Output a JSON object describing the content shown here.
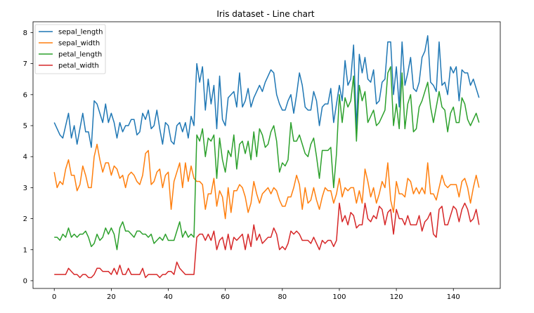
{
  "chart_data": {
    "type": "line",
    "title": "Iris dataset - Line chart",
    "xlabel": "",
    "ylabel": "",
    "xlim": [
      -7.45,
      156.45
    ],
    "ylim": [
      -0.25,
      8.35
    ],
    "x_ticks": [
      0,
      20,
      40,
      60,
      80,
      100,
      120,
      140
    ],
    "y_ticks": [
      0,
      1,
      2,
      3,
      4,
      5,
      6,
      7,
      8
    ],
    "grid": false,
    "legend_position": "top-left",
    "x": [
      0,
      1,
      2,
      3,
      4,
      5,
      6,
      7,
      8,
      9,
      10,
      11,
      12,
      13,
      14,
      15,
      16,
      17,
      18,
      19,
      20,
      21,
      22,
      23,
      24,
      25,
      26,
      27,
      28,
      29,
      30,
      31,
      32,
      33,
      34,
      35,
      36,
      37,
      38,
      39,
      40,
      41,
      42,
      43,
      44,
      45,
      46,
      47,
      48,
      49,
      50,
      51,
      52,
      53,
      54,
      55,
      56,
      57,
      58,
      59,
      60,
      61,
      62,
      63,
      64,
      65,
      66,
      67,
      68,
      69,
      70,
      71,
      72,
      73,
      74,
      75,
      76,
      77,
      78,
      79,
      80,
      81,
      82,
      83,
      84,
      85,
      86,
      87,
      88,
      89,
      90,
      91,
      92,
      93,
      94,
      95,
      96,
      97,
      98,
      99,
      100,
      101,
      102,
      103,
      104,
      105,
      106,
      107,
      108,
      109,
      110,
      111,
      112,
      113,
      114,
      115,
      116,
      117,
      118,
      119,
      120,
      121,
      122,
      123,
      124,
      125,
      126,
      127,
      128,
      129,
      130,
      131,
      132,
      133,
      134,
      135,
      136,
      137,
      138,
      139,
      140,
      141,
      142,
      143,
      144,
      145,
      146,
      147,
      148,
      149
    ],
    "series": [
      {
        "name": "sepal_length",
        "color": "#1f77b4",
        "values": [
          5.1,
          4.9,
          4.7,
          4.6,
          5.0,
          5.4,
          4.6,
          5.0,
          4.4,
          4.9,
          5.4,
          4.8,
          4.8,
          4.3,
          5.8,
          5.7,
          5.4,
          5.1,
          5.7,
          5.1,
          5.4,
          5.1,
          4.6,
          5.1,
          4.8,
          5.0,
          5.0,
          5.2,
          5.2,
          4.7,
          4.8,
          5.4,
          5.2,
          5.5,
          4.9,
          5.0,
          5.5,
          4.9,
          4.4,
          5.1,
          5.0,
          4.5,
          4.4,
          5.0,
          5.1,
          4.8,
          5.1,
          4.6,
          5.3,
          5.0,
          7.0,
          6.4,
          6.9,
          5.5,
          6.5,
          5.7,
          6.3,
          4.9,
          6.6,
          5.2,
          5.0,
          5.9,
          6.0,
          6.1,
          5.6,
          6.7,
          5.6,
          5.8,
          6.2,
          5.6,
          5.9,
          6.1,
          6.3,
          6.1,
          6.4,
          6.6,
          6.8,
          6.7,
          6.0,
          5.7,
          5.5,
          5.5,
          5.8,
          6.0,
          5.4,
          6.0,
          6.7,
          6.3,
          5.6,
          5.5,
          5.5,
          6.1,
          5.8,
          5.0,
          5.6,
          5.7,
          5.7,
          6.2,
          5.1,
          5.7,
          6.3,
          5.8,
          7.1,
          6.3,
          6.5,
          7.6,
          4.9,
          7.3,
          6.7,
          7.2,
          6.5,
          6.4,
          6.8,
          5.7,
          5.8,
          6.4,
          6.5,
          7.7,
          7.7,
          6.0,
          6.9,
          5.6,
          7.7,
          6.3,
          6.7,
          7.2,
          6.2,
          6.1,
          6.4,
          7.2,
          7.4,
          7.9,
          6.4,
          6.3,
          6.1,
          7.7,
          6.3,
          6.4,
          6.0,
          6.9,
          6.7,
          6.9,
          5.8,
          6.8,
          6.7,
          6.7,
          6.3,
          6.5,
          6.2,
          5.9
        ]
      },
      {
        "name": "sepal_width",
        "color": "#ff7f0e",
        "values": [
          3.5,
          3.0,
          3.2,
          3.1,
          3.6,
          3.9,
          3.4,
          3.4,
          2.9,
          3.1,
          3.7,
          3.4,
          3.0,
          3.0,
          4.0,
          4.4,
          3.9,
          3.5,
          3.8,
          3.8,
          3.4,
          3.7,
          3.6,
          3.3,
          3.4,
          3.0,
          3.4,
          3.5,
          3.4,
          3.2,
          3.1,
          3.4,
          4.1,
          4.2,
          3.1,
          3.2,
          3.5,
          3.6,
          3.0,
          3.4,
          3.5,
          2.3,
          3.2,
          3.5,
          3.8,
          3.0,
          3.8,
          3.2,
          3.7,
          3.3,
          3.2,
          3.2,
          3.1,
          2.3,
          2.8,
          2.8,
          3.3,
          2.4,
          2.9,
          2.7,
          2.0,
          3.0,
          2.2,
          2.9,
          2.9,
          3.1,
          3.0,
          2.7,
          2.2,
          2.5,
          3.2,
          2.8,
          2.5,
          2.8,
          2.9,
          3.0,
          2.8,
          3.0,
          2.9,
          2.6,
          2.4,
          2.4,
          2.7,
          2.7,
          3.0,
          3.4,
          3.1,
          2.3,
          3.0,
          2.5,
          2.6,
          3.0,
          2.6,
          2.3,
          2.7,
          3.0,
          2.9,
          2.9,
          2.5,
          2.8,
          3.3,
          2.7,
          3.0,
          2.9,
          3.0,
          3.0,
          2.5,
          2.9,
          2.5,
          3.6,
          3.2,
          2.7,
          3.0,
          2.5,
          2.8,
          3.2,
          3.0,
          3.8,
          2.6,
          2.2,
          3.2,
          2.8,
          2.8,
          2.7,
          3.3,
          3.2,
          2.8,
          3.0,
          2.8,
          3.0,
          2.8,
          3.8,
          2.8,
          2.8,
          2.6,
          3.0,
          3.4,
          3.1,
          3.0,
          3.1,
          3.1,
          3.1,
          2.7,
          3.2,
          3.3,
          3.0,
          2.5,
          3.0,
          3.4,
          3.0
        ]
      },
      {
        "name": "petal_length",
        "color": "#2ca02c",
        "values": [
          1.4,
          1.4,
          1.3,
          1.5,
          1.4,
          1.7,
          1.4,
          1.5,
          1.4,
          1.5,
          1.5,
          1.6,
          1.4,
          1.1,
          1.2,
          1.5,
          1.3,
          1.4,
          1.7,
          1.5,
          1.7,
          1.5,
          1.0,
          1.7,
          1.9,
          1.6,
          1.6,
          1.5,
          1.4,
          1.6,
          1.6,
          1.5,
          1.5,
          1.4,
          1.5,
          1.2,
          1.3,
          1.4,
          1.3,
          1.5,
          1.3,
          1.3,
          1.3,
          1.6,
          1.9,
          1.4,
          1.6,
          1.4,
          1.5,
          1.4,
          4.7,
          4.5,
          4.9,
          4.0,
          4.6,
          4.5,
          4.7,
          3.3,
          4.6,
          3.9,
          3.5,
          4.2,
          4.0,
          4.7,
          3.6,
          4.4,
          4.5,
          4.1,
          4.5,
          3.9,
          4.8,
          4.0,
          4.9,
          4.7,
          4.3,
          4.4,
          4.8,
          5.0,
          4.5,
          3.5,
          3.8,
          3.7,
          3.9,
          5.1,
          4.5,
          4.5,
          4.7,
          4.4,
          4.1,
          4.0,
          4.4,
          4.6,
          4.0,
          3.3,
          4.2,
          4.2,
          4.2,
          4.3,
          3.0,
          4.1,
          6.0,
          5.1,
          5.9,
          5.6,
          5.8,
          6.6,
          4.5,
          6.3,
          5.8,
          6.1,
          5.1,
          5.3,
          5.5,
          5.0,
          5.1,
          5.3,
          5.5,
          6.7,
          6.9,
          5.0,
          5.7,
          4.9,
          6.7,
          4.9,
          5.7,
          6.0,
          4.8,
          4.9,
          5.6,
          5.8,
          6.1,
          6.4,
          5.6,
          5.1,
          5.6,
          6.1,
          5.6,
          5.5,
          4.8,
          5.4,
          5.6,
          5.1,
          5.1,
          5.9,
          5.7,
          5.2,
          5.0,
          5.2,
          5.4,
          5.1
        ]
      },
      {
        "name": "petal_width",
        "color": "#d62728",
        "values": [
          0.2,
          0.2,
          0.2,
          0.2,
          0.2,
          0.4,
          0.3,
          0.2,
          0.2,
          0.1,
          0.2,
          0.2,
          0.1,
          0.1,
          0.2,
          0.4,
          0.4,
          0.3,
          0.3,
          0.3,
          0.2,
          0.4,
          0.2,
          0.5,
          0.2,
          0.2,
          0.4,
          0.2,
          0.2,
          0.2,
          0.2,
          0.4,
          0.1,
          0.2,
          0.2,
          0.2,
          0.2,
          0.1,
          0.2,
          0.2,
          0.3,
          0.3,
          0.2,
          0.6,
          0.4,
          0.3,
          0.2,
          0.2,
          0.2,
          0.2,
          1.4,
          1.5,
          1.5,
          1.3,
          1.5,
          1.3,
          1.6,
          1.0,
          1.3,
          1.4,
          1.0,
          1.5,
          1.0,
          1.4,
          1.3,
          1.4,
          1.5,
          1.0,
          1.5,
          1.1,
          1.8,
          1.3,
          1.5,
          1.2,
          1.3,
          1.4,
          1.4,
          1.7,
          1.5,
          1.0,
          1.1,
          1.0,
          1.2,
          1.6,
          1.5,
          1.6,
          1.5,
          1.3,
          1.3,
          1.3,
          1.2,
          1.4,
          1.2,
          1.0,
          1.3,
          1.2,
          1.3,
          1.3,
          1.1,
          1.3,
          2.5,
          1.9,
          2.1,
          1.8,
          2.2,
          2.1,
          1.7,
          1.8,
          1.8,
          2.5,
          2.0,
          1.9,
          2.1,
          2.0,
          2.4,
          2.3,
          1.8,
          2.2,
          2.3,
          1.5,
          2.3,
          2.0,
          2.0,
          1.8,
          2.1,
          1.8,
          1.8,
          1.8,
          2.1,
          1.6,
          1.9,
          2.0,
          2.2,
          1.5,
          1.4,
          2.3,
          2.4,
          1.8,
          1.8,
          2.1,
          2.4,
          2.3,
          1.9,
          2.3,
          2.5,
          2.3,
          1.9,
          2.0,
          2.3,
          1.8
        ]
      }
    ]
  }
}
